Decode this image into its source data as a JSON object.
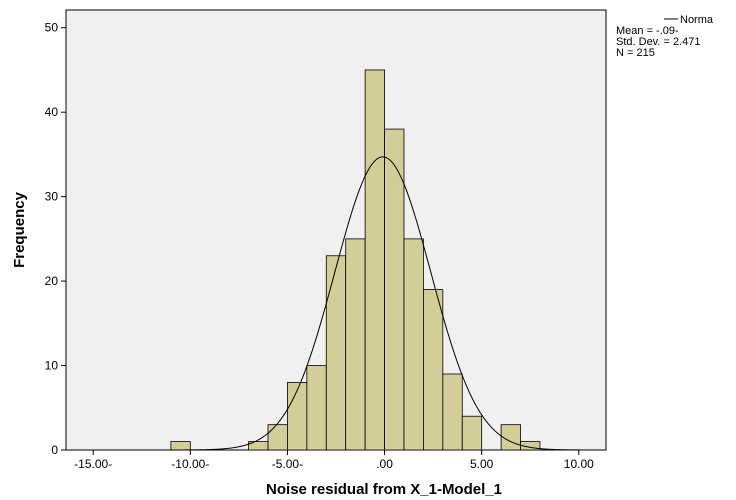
{
  "chart_data": {
    "type": "histogram",
    "x_label": "Noise residual from X_1-Model_1",
    "y_label": "Frequency",
    "bins": [
      -11,
      -10,
      -9,
      -8,
      -7,
      -6,
      -5,
      -4,
      -3,
      -2,
      -1,
      0,
      1,
      2,
      3,
      4,
      5,
      6,
      7,
      8
    ],
    "values": [
      1,
      0,
      0,
      0,
      1,
      3,
      8,
      10,
      23,
      25,
      45,
      38,
      25,
      19,
      9,
      4,
      0,
      3,
      1
    ],
    "color": "#d3cd98",
    "xlim": [
      -16.4,
      11.4
    ],
    "ylim": [
      0,
      52.1
    ],
    "xticks": [
      {
        "value": -15,
        "label": "-15.00-"
      },
      {
        "value": -10,
        "label": "-10.00-"
      },
      {
        "value": -5,
        "label": "-5.00-"
      },
      {
        "value": 0,
        "label": ".00"
      },
      {
        "value": 5,
        "label": "5.00"
      },
      {
        "value": 10,
        "label": "10.00"
      }
    ],
    "yticks": [
      0,
      10,
      20,
      30,
      40,
      50
    ],
    "normal": {
      "name": "Norma",
      "mean": {
        "value": -0.09,
        "label": "Mean = -.09-"
      },
      "sd": {
        "value": 2.471,
        "label": "Std. Dev. = 2.471"
      },
      "n": {
        "value": 215,
        "label": "N = 215"
      }
    }
  }
}
